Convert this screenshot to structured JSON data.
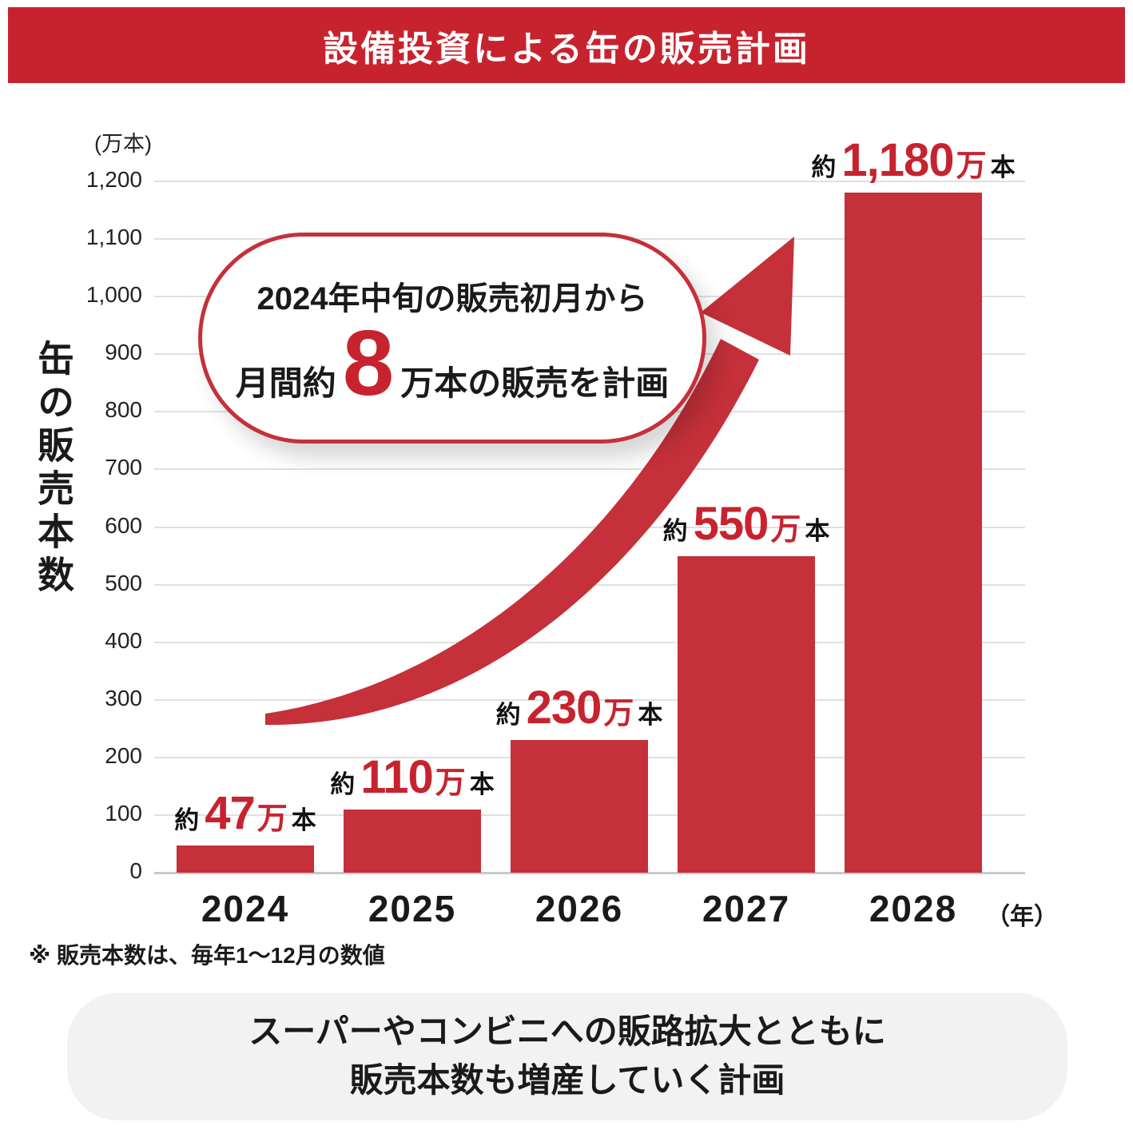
{
  "header": {
    "title": "設備投資による缶の販売計画"
  },
  "page": {
    "footnote": "※ 販売本数は、毎年1〜12月の数値",
    "summary_line1": "スーパーやコンビニへの販路拡大とともに",
    "summary_line2": "販売本数も増産していく計画"
  },
  "colors": {
    "header_red": "#C7232F",
    "accent_red": "#C5303A",
    "number_red": "#C7232F",
    "grid": "#E0E0E0",
    "baseline": "#C9C9C9",
    "note_bg": "#F2F2F2"
  },
  "chart_data": {
    "type": "bar",
    "title": "設備投資による缶の販売計画",
    "unit_label": "(万本)",
    "ylabel": "缶の販売本数",
    "xlabel_suffix": "（年）",
    "ylim": [
      0,
      1200
    ],
    "grid": true,
    "legend": "none",
    "ytick_labels": [
      "0",
      "100",
      "200",
      "300",
      "400",
      "500",
      "600",
      "700",
      "800",
      "900",
      "1,000",
      "1,100",
      "1,200"
    ],
    "categories": [
      "2024",
      "2025",
      "2026",
      "2027",
      "2028"
    ],
    "values": [
      47,
      110,
      230,
      550,
      1180
    ],
    "bar_labels": [
      {
        "prefix": "約",
        "number": "47",
        "unit": "万",
        "suffix": "本"
      },
      {
        "prefix": "約",
        "number": "110",
        "unit": "万",
        "suffix": "本"
      },
      {
        "prefix": "約",
        "number": "230",
        "unit": "万",
        "suffix": "本"
      },
      {
        "prefix": "約",
        "number": "550",
        "unit": "万",
        "suffix": "本"
      },
      {
        "prefix": "約",
        "number": "1,180",
        "unit": "万",
        "suffix": "本"
      }
    ],
    "callout": {
      "line1": "2024年中旬の販売初月から",
      "line2_prefix": "月間約",
      "line2_number": "8",
      "line2_suffix": "万本の販売を計画"
    }
  }
}
